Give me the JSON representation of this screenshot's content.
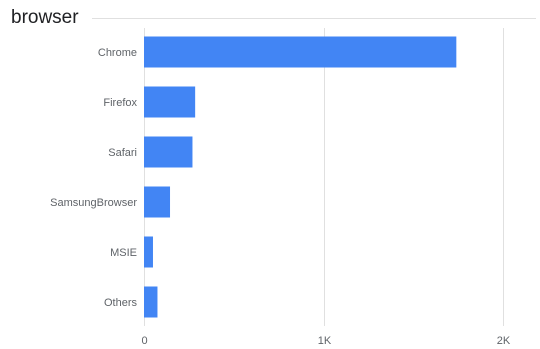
{
  "header": {
    "title": "browser"
  },
  "chart_data": {
    "type": "bar",
    "orientation": "horizontal",
    "title": "browser",
    "xlabel": "",
    "ylabel": "",
    "categories": [
      "Chrome",
      "Firefox",
      "Safari",
      "SamsungBrowser",
      "MSIE",
      "Others"
    ],
    "values": [
      1740,
      285,
      270,
      145,
      50,
      75
    ],
    "xlim": [
      0,
      2000
    ],
    "x_ticks": [
      {
        "value": 0,
        "label": "0"
      },
      {
        "value": 1000,
        "label": "1K"
      },
      {
        "value": 2000,
        "label": "2K"
      }
    ],
    "grid": true,
    "legend": "none",
    "colors": {
      "bar": "#4285f4",
      "grid": "#e0e0e0",
      "label": "#5f6368",
      "title": "#202124"
    }
  }
}
